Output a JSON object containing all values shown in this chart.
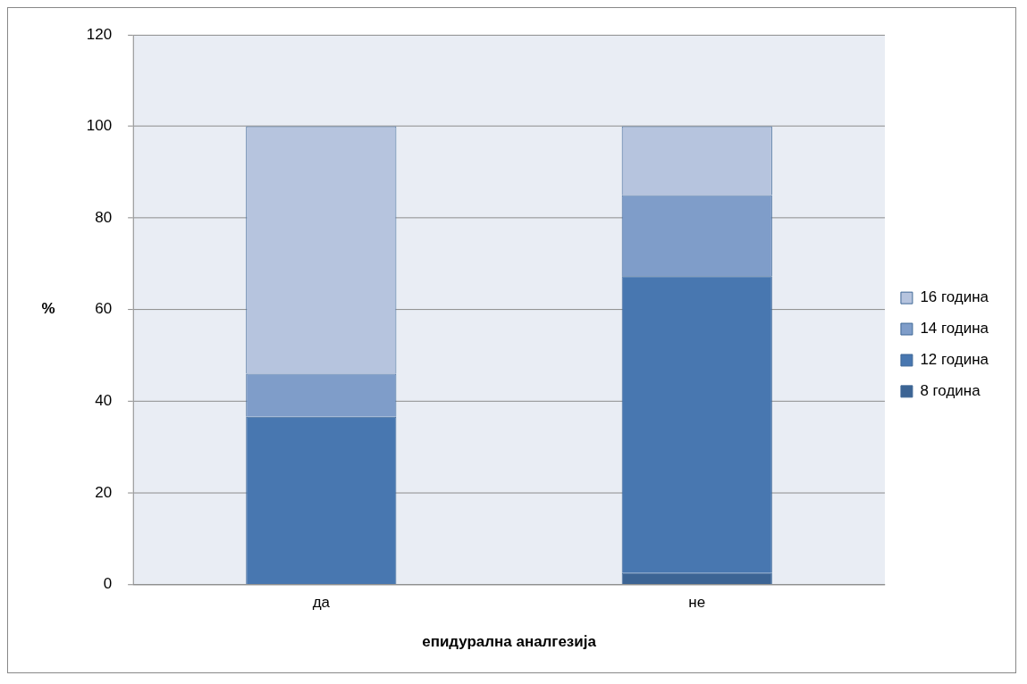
{
  "chart_data": {
    "type": "bar",
    "stacked": true,
    "xlabel": "епидурална аналгезија",
    "ylabel": "%",
    "categories": [
      "да",
      "не"
    ],
    "series": [
      {
        "name": "8 година",
        "color": "#3c6494",
        "values": [
          0,
          2.5
        ]
      },
      {
        "name": "12 година",
        "color": "#4877b0",
        "values": [
          36.6,
          64.8
        ]
      },
      {
        "name": "14 година",
        "color": "#7f9dc9",
        "values": [
          9.4,
          17.7
        ]
      },
      {
        "name": "16 година",
        "color": "#b6c4de",
        "values": [
          54,
          15
        ]
      }
    ],
    "ylim": [
      0,
      120
    ],
    "yticks": [
      0,
      20,
      40,
      60,
      80,
      100,
      120
    ],
    "grid": "y",
    "legend": "right"
  }
}
